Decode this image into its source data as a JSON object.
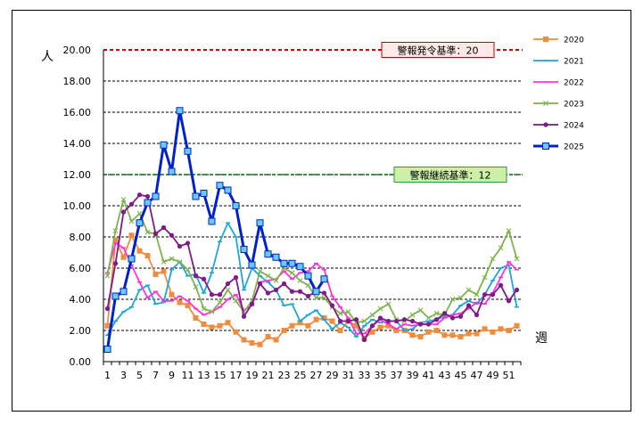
{
  "chart_data": {
    "type": "line",
    "ylabel": "人",
    "xlabel": "週",
    "ylim": [
      0,
      20
    ],
    "yticks": [
      "0.00",
      "2.00",
      "4.00",
      "6.00",
      "8.00",
      "10.00",
      "12.00",
      "14.00",
      "16.00",
      "18.00",
      "20.00"
    ],
    "x_range": [
      1,
      52
    ],
    "xticks": [
      "1",
      "3",
      "5",
      "7",
      "9",
      "11",
      "13",
      "15",
      "17",
      "19",
      "21",
      "23",
      "25",
      "27",
      "29",
      "31",
      "33",
      "35",
      "37",
      "39",
      "41",
      "43",
      "45",
      "47",
      "49",
      "51"
    ],
    "grid": true,
    "legend_position": "right",
    "thresholds": [
      {
        "label": "警報発令基準：20",
        "value": 20,
        "color": "#cc0000",
        "box_fill": "#fde9e7",
        "box_border": "#cc0000"
      },
      {
        "label": "警報継続基準：12",
        "value": 12,
        "color": "#339933",
        "box_fill": "#ccf0a8",
        "box_border": "#339933"
      }
    ],
    "series": [
      {
        "name": "2020",
        "color": "#f08c3c",
        "marker": "square",
        "values": [
          2.3,
          7.8,
          6.7,
          8.1,
          7.1,
          6.8,
          5.6,
          5.8,
          4.3,
          3.8,
          3.6,
          2.8,
          2.4,
          2.2,
          2.3,
          2.5,
          1.9,
          1.4,
          1.2,
          1.1,
          1.6,
          1.4,
          2.0,
          2.3,
          2.5,
          2.3,
          2.7,
          2.8,
          2.6,
          2.0,
          2.6,
          2.3,
          1.5,
          1.9,
          2.2,
          2.3,
          2.0,
          2.0,
          1.7,
          1.6,
          1.9,
          2.0,
          1.7,
          1.7,
          1.6,
          1.8,
          1.8,
          2.1,
          1.9,
          2.1,
          2.0,
          2.3
        ]
      },
      {
        "name": "2021",
        "color": "#1ca6dd",
        "marker": "dash",
        "values": [
          1.7,
          2.6,
          3.2,
          3.5,
          4.6,
          4.9,
          3.7,
          3.8,
          5.9,
          6.4,
          5.5,
          5.6,
          4.4,
          5.7,
          7.7,
          8.9,
          8.0,
          4.6,
          6.0,
          5.5,
          5.1,
          4.6,
          3.6,
          3.7,
          2.6,
          3.0,
          3.3,
          2.7,
          2.1,
          2.5,
          2.2,
          1.6,
          2.3,
          2.7,
          2.5,
          2.6,
          2.6,
          2.0,
          2.1,
          2.5,
          2.6,
          2.7,
          2.9,
          3.0,
          3.6,
          3.9,
          3.7,
          4.3,
          5.2,
          6.0,
          6.2,
          3.5
        ]
      },
      {
        "name": "2022",
        "color": "#ff33dd",
        "marker": "dash",
        "values": [
          5.7,
          7.6,
          7.3,
          6.2,
          5.1,
          4.1,
          4.5,
          3.9,
          3.9,
          4.2,
          3.9,
          3.4,
          3.0,
          3.2,
          3.5,
          4.0,
          4.3,
          3.3,
          3.6,
          5.1,
          5.2,
          5.3,
          5.8,
          5.3,
          5.7,
          5.8,
          6.3,
          5.9,
          4.2,
          3.5,
          2.8,
          1.8,
          1.8,
          2.3,
          2.7,
          2.4,
          2.1,
          2.4,
          2.3,
          2.4,
          2.4,
          2.4,
          2.8,
          3.0,
          3.1,
          3.4,
          3.8,
          3.7,
          4.4,
          5.4,
          6.4,
          5.9
        ]
      },
      {
        "name": "2023",
        "color": "#7fb34d",
        "marker": "x",
        "values": [
          5.5,
          8.4,
          10.4,
          9.0,
          9.5,
          8.3,
          8.2,
          6.4,
          6.6,
          6.4,
          5.9,
          4.8,
          3.4,
          3.2,
          3.8,
          4.6,
          3.9,
          3.2,
          3.9,
          5.8,
          5.5,
          5.2,
          6.0,
          5.7,
          5.2,
          4.9,
          4.1,
          4.1,
          3.5,
          3.1,
          3.2,
          2.5,
          2.6,
          3.0,
          3.4,
          3.7,
          2.7,
          2.6,
          3.0,
          3.3,
          2.8,
          3.1,
          3.0,
          4.0,
          4.1,
          4.6,
          4.3,
          5.4,
          6.6,
          7.3,
          8.4,
          6.6
        ]
      },
      {
        "name": "2024",
        "color": "#7f1a88",
        "marker": "circle",
        "values": [
          3.4,
          6.3,
          9.6,
          10.1,
          10.7,
          10.6,
          8.2,
          8.6,
          8.1,
          7.4,
          7.6,
          5.5,
          5.3,
          4.3,
          4.3,
          5.0,
          5.4,
          2.9,
          3.7,
          5.0,
          4.4,
          4.6,
          5.0,
          4.5,
          4.5,
          4.2,
          4.5,
          4.4,
          3.6,
          2.6,
          2.6,
          2.7,
          1.4,
          2.3,
          2.8,
          2.6,
          2.6,
          2.7,
          2.6,
          2.4,
          2.4,
          2.7,
          3.1,
          2.8,
          2.9,
          3.6,
          3.0,
          4.3,
          4.3,
          4.9,
          3.9,
          4.6
        ]
      },
      {
        "name": "2025",
        "color": "#0022cc",
        "marker": "square",
        "values": [
          0.8,
          4.2,
          4.5,
          6.6,
          8.9,
          10.2,
          10.6,
          13.9,
          12.2,
          16.1,
          13.5,
          10.6,
          10.8,
          9.0,
          11.3,
          11.0,
          10.0,
          7.2,
          6.2,
          8.9,
          6.9,
          6.7,
          6.3,
          6.3,
          6.1,
          5.5,
          4.5,
          5.3,
          null,
          null,
          null,
          null,
          null,
          null,
          null,
          null,
          null,
          null,
          null,
          null,
          null,
          null,
          null,
          null,
          null,
          null,
          null,
          null,
          null,
          null,
          null,
          null
        ]
      }
    ]
  }
}
